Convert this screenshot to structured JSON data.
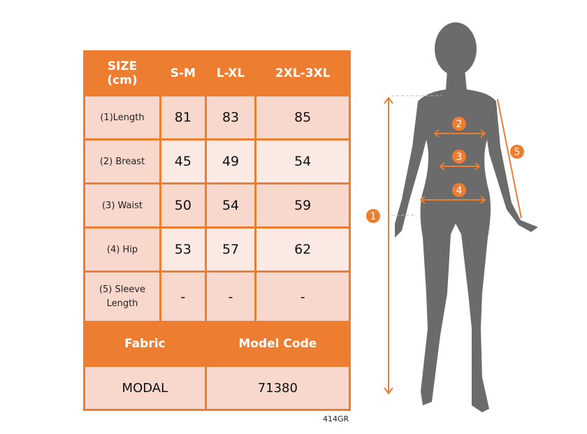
{
  "table": {
    "header": [
      "SIZE\n(cm)",
      "S-M",
      "L-XL",
      "2XL-3XL"
    ],
    "rows": [
      {
        "label": "(1)Length",
        "values": [
          "81",
          "83",
          "85"
        ]
      },
      {
        "label": "(2) Breast",
        "values": [
          "45",
          "49",
          "54"
        ]
      },
      {
        "label": "(3) Waist",
        "values": [
          "50",
          "54",
          "59"
        ]
      },
      {
        "label": "(4) Hip",
        "values": [
          "53",
          "57",
          "62"
        ]
      },
      {
        "label": "(5) Sleeve Length",
        "values": [
          "-",
          "-",
          "-"
        ]
      }
    ],
    "fabric_label": "Fabric",
    "model_code_label": "Model Code",
    "fabric": "MODAL",
    "model_code": "71380"
  },
  "product_code": "414GR",
  "markers": [
    "1",
    "2",
    "3",
    "4",
    "5"
  ],
  "colors": {
    "accent": "#ed7d31",
    "row_dark": "#f8d7cc",
    "row_light": "#fbeae4",
    "silhouette": "#6b6b6b"
  }
}
